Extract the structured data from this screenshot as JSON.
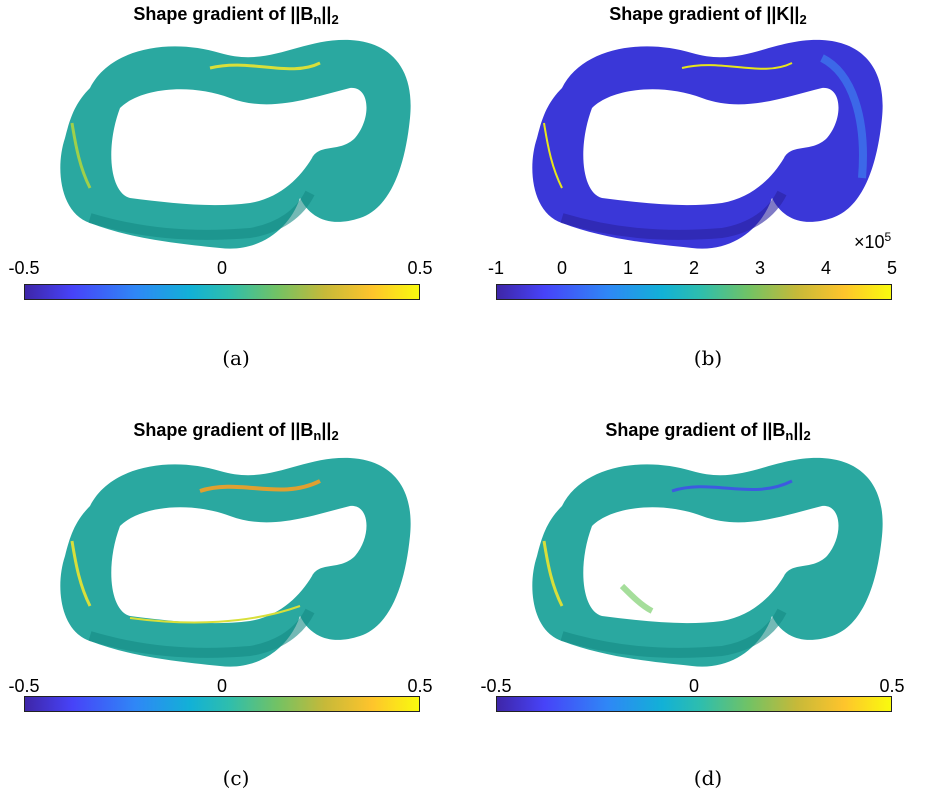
{
  "panels": [
    {
      "title_main": "Shape gradient of ||B",
      "title_sub": "n",
      "title_tail": "||",
      "title_sub2": "2",
      "ticks": [
        "-0.5",
        "0",
        "0.5"
      ],
      "multiplier": "",
      "caption": "(a)",
      "palette": "teal"
    },
    {
      "title_main": "Shape gradient of ||K||",
      "title_sub": "",
      "title_tail": "",
      "title_sub2": "2",
      "ticks": [
        "-1",
        "0",
        "1",
        "2",
        "3",
        "4",
        "5"
      ],
      "multiplier_base": "×10",
      "multiplier_exp": "5",
      "caption": "(b)",
      "palette": "blue"
    },
    {
      "title_main": "Shape gradient of ||B",
      "title_sub": "n",
      "title_tail": "||",
      "title_sub2": "2",
      "ticks": [
        "-0.5",
        "0",
        "0.5"
      ],
      "multiplier": "",
      "caption": "(c)",
      "palette": "teal"
    },
    {
      "title_main": "Shape gradient of ||B",
      "title_sub": "n",
      "title_tail": "||",
      "title_sub2": "2",
      "ticks": [
        "-0.5",
        "0",
        "0.5"
      ],
      "multiplier": "",
      "caption": "(d)",
      "palette": "teal"
    }
  ],
  "colors": {
    "teal_base": "#1f9f94",
    "teal_light": "#2bb8b0",
    "blue_base": "#3a37d8",
    "blue_light": "#3d7df0",
    "yellow_accent": "#e8e61a"
  }
}
